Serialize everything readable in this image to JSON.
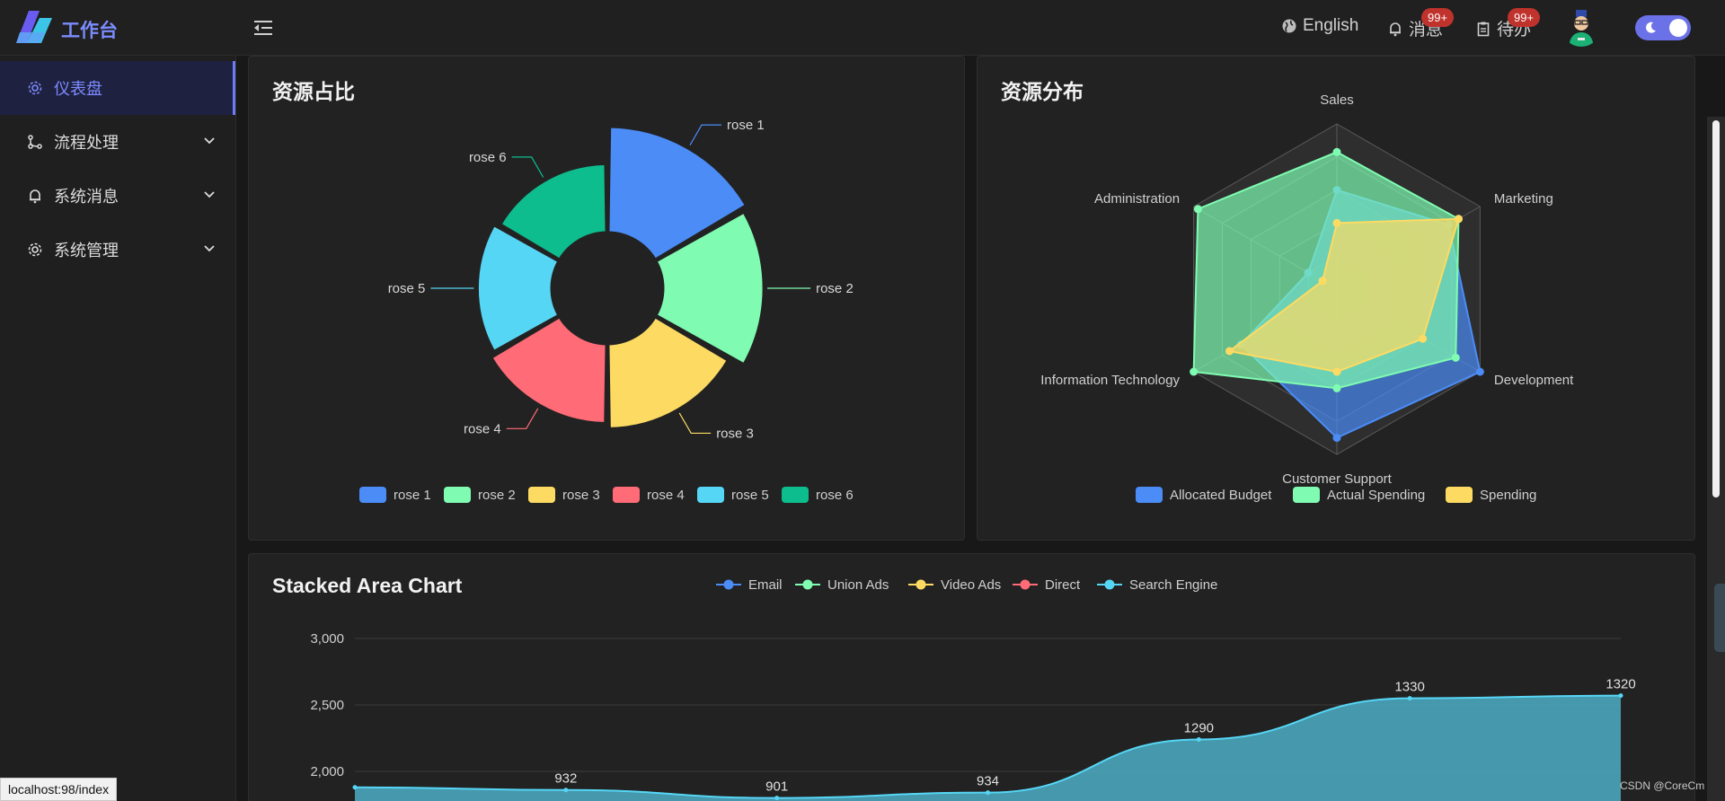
{
  "header": {
    "brand": "工作台",
    "language": "English",
    "messages_label": "消息",
    "messages_badge": "99+",
    "todo_label": "待办",
    "todo_badge": "99+"
  },
  "sidebar": {
    "items": [
      {
        "label": "仪表盘",
        "icon": "gear-icon",
        "active": true,
        "expandable": false
      },
      {
        "label": "流程处理",
        "icon": "flow-icon",
        "active": false,
        "expandable": true
      },
      {
        "label": "系统消息",
        "icon": "bell-icon",
        "active": false,
        "expandable": true
      },
      {
        "label": "系统管理",
        "icon": "gear-icon",
        "active": false,
        "expandable": true
      }
    ]
  },
  "colors": {
    "blue": "#4b8cf7",
    "green": "#7ffcb2",
    "yellow": "#fddb63",
    "red": "#ff6b76",
    "cyan": "#56d6f5",
    "teal": "#0dbd8d",
    "accent": "#7b8cff"
  },
  "rose_card": {
    "title": "资源占比",
    "chart_data": {
      "type": "pie",
      "categories": [
        "rose 1",
        "rose 2",
        "rose 3",
        "rose 4",
        "rose 5",
        "rose 6"
      ],
      "values": [
        40,
        38,
        32,
        30,
        28,
        26
      ],
      "legend": "bottom"
    }
  },
  "radar_card": {
    "title": "资源分布",
    "chart_data": {
      "type": "radar",
      "indicators": [
        "Sales",
        "Marketing",
        "Development",
        "Customer Support",
        "Information Technology",
        "Administration"
      ],
      "max": 1,
      "series": [
        {
          "name": "Allocated Budget",
          "values": [
            0.6,
            0.78,
            1.0,
            0.9,
            0.67,
            0.2
          ]
        },
        {
          "name": "Actual Spending",
          "values": [
            0.83,
            0.85,
            0.83,
            0.6,
            1.0,
            0.97
          ]
        },
        {
          "name": "Spending",
          "values": [
            0.4,
            0.85,
            0.6,
            0.5,
            0.75,
            0.1
          ]
        }
      ],
      "legend": "bottom"
    }
  },
  "area_card": {
    "title": "Stacked Area Chart",
    "chart_data": {
      "type": "area",
      "stacked": true,
      "yticks": [
        "3,000",
        "2,500",
        "2,000"
      ],
      "ylim": [
        1500,
        3000
      ],
      "series_names": [
        "Email",
        "Union Ads",
        "Video Ads",
        "Direct",
        "Search Engine"
      ],
      "top_series": {
        "name": "Search Engine",
        "x": [
          0,
          1,
          2,
          3,
          4,
          5,
          6
        ],
        "totals": [
          1880,
          1860,
          1800,
          1840,
          2240,
          2550,
          2570
        ],
        "labels": [
          "",
          "932",
          "901",
          "934",
          "1290",
          "1330",
          "1320"
        ]
      },
      "legend": "top"
    }
  },
  "footer": {
    "status_url": "localhost:98/index",
    "watermark": "CSDN @CoreCm"
  }
}
